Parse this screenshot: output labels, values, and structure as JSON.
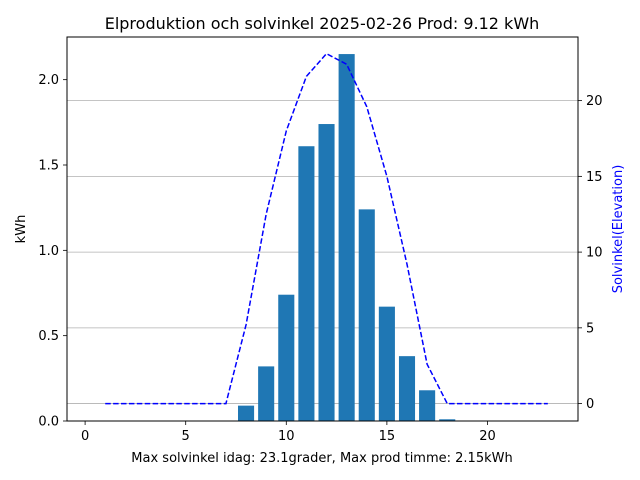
{
  "chart_data": {
    "type": "bar",
    "title": "Elproduktion och solvinkel 2025-02-26 Prod: 9.12 kWh",
    "xlabel": "Max solvinkel idag: 23.1grader, Max prod timme: 2.15kWh",
    "ylabel": "kWh",
    "y2label": "Solvinkel(Elevation)",
    "xlim": [
      -0.9,
      24.5
    ],
    "ylim": [
      0,
      2.25
    ],
    "y2lim": [
      -1.15,
      24.2
    ],
    "xticks": [
      0,
      5,
      10,
      15,
      20
    ],
    "yticks": [
      0.0,
      0.5,
      1.0,
      1.5,
      2.0
    ],
    "y2ticks": [
      0,
      5,
      10,
      15,
      20
    ],
    "xtick_labels": [
      "0",
      "5",
      "10",
      "15",
      "20"
    ],
    "ytick_labels": [
      "0.0",
      "0.5",
      "1.0",
      "1.5",
      "2.0"
    ],
    "y2tick_labels": [
      "0",
      "5",
      "10",
      "15",
      "20"
    ],
    "grid": "horizontal lines at right-axis ticks",
    "bar_color": "#1f77b4",
    "line_color": "#0000ff",
    "bars": {
      "name": "Prod",
      "x": [
        8,
        9,
        10,
        11,
        12,
        13,
        14,
        15,
        16,
        17,
        18
      ],
      "values": [
        0.09,
        0.32,
        0.74,
        1.61,
        1.74,
        2.15,
        1.24,
        0.67,
        0.38,
        0.18,
        0.01
      ]
    },
    "line": {
      "name": "Solvinkel",
      "style": "dashed",
      "x": [
        1,
        2,
        3,
        4,
        5,
        6,
        7,
        8,
        9,
        10,
        11,
        12,
        13,
        14,
        15,
        16,
        17,
        18,
        19,
        20,
        21,
        22,
        23
      ],
      "values": [
        0,
        0,
        0,
        0,
        0,
        0,
        0,
        5.2,
        12.5,
        18.0,
        21.6,
        23.1,
        22.4,
        19.6,
        15.0,
        9.2,
        2.6,
        0,
        0,
        0,
        0,
        0,
        0
      ]
    }
  }
}
